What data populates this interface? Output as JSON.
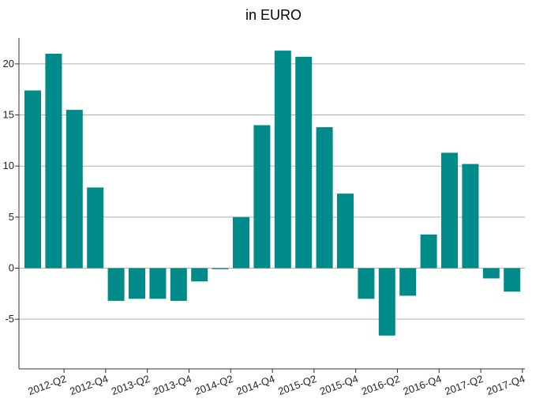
{
  "chart_data": {
    "type": "bar",
    "title": "in EURO",
    "xlabel": "",
    "ylabel": "",
    "ylim": [
      -10,
      22
    ],
    "yticks": [
      20,
      15,
      10,
      5,
      0,
      -5
    ],
    "grid": true,
    "bar_color": "#008B8B",
    "categories": [
      "2012-Q1",
      "2012-Q2",
      "2012-Q3",
      "2012-Q4",
      "2013-Q1",
      "2013-Q2",
      "2013-Q3",
      "2013-Q4",
      "2014-Q1",
      "2014-Q2",
      "2014-Q3",
      "2014-Q4",
      "2015-Q1",
      "2015-Q2",
      "2015-Q3",
      "2015-Q4",
      "2016-Q1",
      "2016-Q2",
      "2016-Q3",
      "2016-Q4",
      "2017-Q1",
      "2017-Q2",
      "2017-Q3",
      "2017-Q4"
    ],
    "xtick_labels": [
      "2012-Q2",
      "2012-Q4",
      "2013-Q2",
      "2013-Q4",
      "2014-Q2",
      "2014-Q4",
      "2015-Q2",
      "2015-Q4",
      "2016-Q2",
      "2016-Q4",
      "2017-Q2",
      "2017-Q4"
    ],
    "values": [
      17.4,
      21.0,
      15.5,
      7.9,
      -3.2,
      -3.0,
      -3.0,
      -3.2,
      -1.3,
      -0.1,
      5.0,
      14.0,
      21.3,
      20.7,
      13.8,
      7.3,
      -3.0,
      -6.6,
      -2.7,
      3.3,
      11.3,
      10.2,
      -1.0,
      -2.3
    ]
  }
}
